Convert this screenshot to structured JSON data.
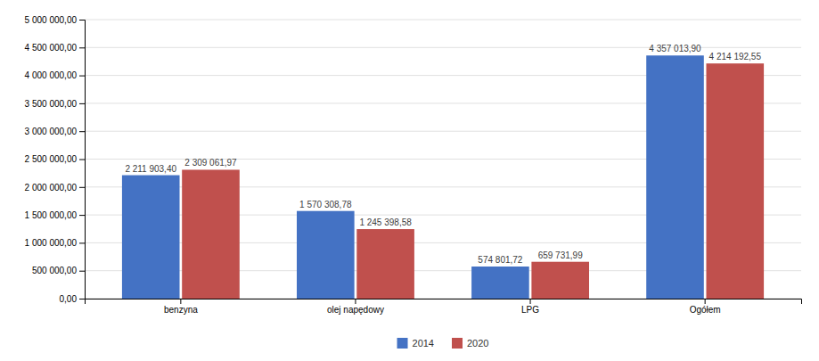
{
  "chart_data": {
    "type": "bar",
    "categories": [
      "benzyna",
      "olej napędowy",
      "LPG",
      "Ogółem"
    ],
    "series": [
      {
        "name": "2014",
        "color": "#4472C4",
        "values": [
          2211903.4,
          1570308.78,
          574801.72,
          4357013.9
        ],
        "value_labels": [
          "2 211 903,40",
          "1 570 308,78",
          "574 801,72",
          "4 357 013,90"
        ]
      },
      {
        "name": "2020",
        "color": "#C0504D",
        "values": [
          2309061.97,
          1245398.58,
          659731.99,
          4214192.55
        ],
        "value_labels": [
          "2 309 061,97",
          "1 245 398,58",
          "659 731,99",
          "4 214 192,55"
        ]
      }
    ],
    "ylim": [
      0,
      5000000
    ],
    "yticks": [
      {
        "value": 0,
        "label": "0,00"
      },
      {
        "value": 500000,
        "label": "500 000,00"
      },
      {
        "value": 1000000,
        "label": "1 000 000,00"
      },
      {
        "value": 1500000,
        "label": "1 500 000,00"
      },
      {
        "value": 2000000,
        "label": "2 000 000,00"
      },
      {
        "value": 2500000,
        "label": "2 500 000,00"
      },
      {
        "value": 3000000,
        "label": "3 000 000,00"
      },
      {
        "value": 3500000,
        "label": "3 500 000,00"
      },
      {
        "value": 4000000,
        "label": "4 000 000,00"
      },
      {
        "value": 4500000,
        "label": "4 500 000,00"
      },
      {
        "value": 5000000,
        "label": "5 000 000,00"
      }
    ],
    "grid": true,
    "legend": "bottom",
    "data_labels": true
  }
}
